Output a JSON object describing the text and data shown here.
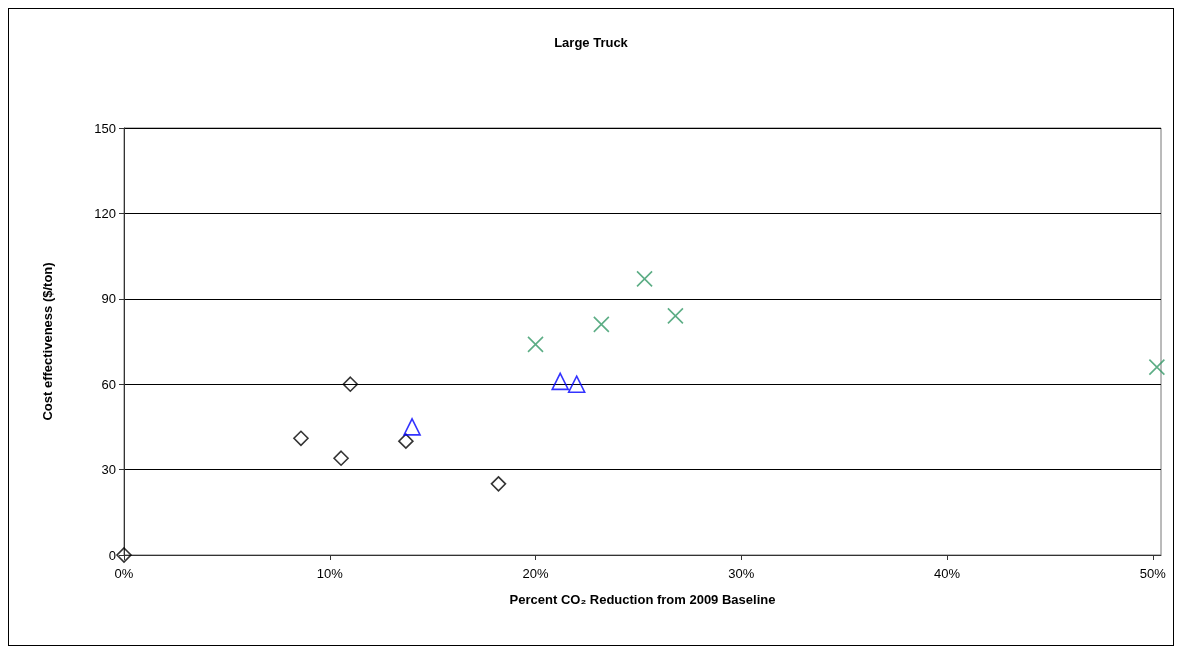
{
  "chart_data": {
    "type": "scatter",
    "title": "Large Truck",
    "xlabel": "Percent CO₂ Reduction from 2009 Baseline",
    "ylabel": "Cost effectiveness ($/ton)",
    "series": [
      {
        "color": "#000000",
        "marker": "diamond",
        "x": [
          0,
          8.6,
          10.55,
          11.0,
          13.7,
          18.2
        ],
        "values": [
          0,
          41,
          34,
          60,
          40,
          25
        ]
      },
      {
        "color": "#0000ff",
        "marker": "triangle",
        "x": [
          14.0,
          21.2,
          22.0
        ],
        "values": [
          45,
          61,
          60
        ]
      },
      {
        "color": "#339966",
        "marker": "cross",
        "x": [
          20.0,
          23.2,
          25.3,
          26.8,
          50.2
        ],
        "values": [
          74,
          81,
          97,
          84,
          66
        ]
      }
    ],
    "xlim": [
      0,
      50.4
    ],
    "xticks": [
      {
        "value": 0,
        "label": "0%"
      },
      {
        "value": 10,
        "label": "10%"
      },
      {
        "value": 20,
        "label": "20%"
      },
      {
        "value": 30,
        "label": "30%"
      },
      {
        "value": 40,
        "label": "40%"
      },
      {
        "value": 50,
        "label": "50%"
      }
    ],
    "ylim": [
      0,
      150
    ],
    "yticks": [
      0,
      30,
      60,
      90,
      120,
      150
    ],
    "grid": "y"
  }
}
